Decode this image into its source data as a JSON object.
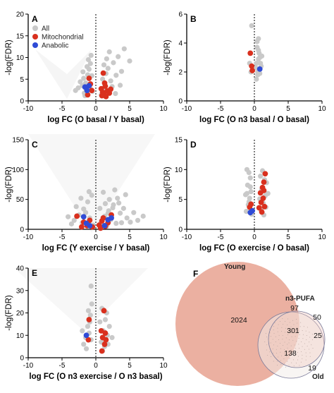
{
  "colors": {
    "all": "#c9c9c9",
    "mitochondrial": "#d9301e",
    "anabolic": "#2f4bd6",
    "young": "#ebb0a1",
    "old": "#f3ece9",
    "n3": "#f2c7bb"
  },
  "legend": [
    "All",
    "Mitochondrial",
    "Anabolic"
  ],
  "chart_data": [
    {
      "type": "scatter",
      "panel": "A",
      "xlabel": "log FC (O basal / Y basal)",
      "ylabel": "-log(FDR)",
      "xlim": [
        -10,
        10
      ],
      "ylim": [
        0,
        20
      ],
      "xticks": [
        -10,
        -5,
        0,
        5,
        10
      ],
      "yticks": [
        0,
        5,
        10,
        15,
        20
      ],
      "legend": true,
      "series": [
        {
          "name": "All",
          "points": [
            [
              -1.8,
              5.2
            ],
            [
              -1.5,
              4.1
            ],
            [
              -1.2,
              6.0
            ],
            [
              -1.0,
              7.3
            ],
            [
              -0.8,
              8.6
            ],
            [
              -1.4,
              2.6
            ],
            [
              -2.0,
              3.5
            ],
            [
              -1.7,
              1.8
            ],
            [
              -1.1,
              9.5
            ],
            [
              -0.6,
              5.8
            ],
            [
              -0.9,
              3.2
            ],
            [
              -2.3,
              4.4
            ],
            [
              -0.5,
              2.2
            ],
            [
              -1.3,
              7.9
            ],
            [
              -2.6,
              3.0
            ],
            [
              -1.9,
              6.7
            ],
            [
              -0.7,
              10.5
            ],
            [
              -1.6,
              1.2
            ],
            [
              -3.0,
              2.4
            ],
            [
              1.0,
              5.0
            ],
            [
              1.3,
              3.9
            ],
            [
              1.5,
              6.3
            ],
            [
              1.8,
              7.5
            ],
            [
              2.2,
              4.6
            ],
            [
              2.6,
              8.8
            ],
            [
              3.0,
              5.9
            ],
            [
              1.1,
              2.8
            ],
            [
              1.9,
              2.3
            ],
            [
              2.4,
              3.3
            ],
            [
              3.3,
              10.2
            ],
            [
              3.8,
              6.8
            ],
            [
              4.2,
              12.0
            ],
            [
              1.6,
              9.7
            ],
            [
              2.9,
              1.7
            ],
            [
              3.6,
              3.6
            ],
            [
              5.0,
              9.2
            ],
            [
              2.0,
              11.3
            ],
            [
              0.8,
              1.4
            ],
            [
              1.2,
              8.3
            ]
          ]
        },
        {
          "name": "Mitochondrial",
          "points": [
            [
              0.8,
              2.8
            ],
            [
              1.0,
              2.0
            ],
            [
              1.2,
              1.5
            ],
            [
              1.4,
              3.4
            ],
            [
              1.7,
              2.3
            ],
            [
              2.0,
              1.8
            ],
            [
              2.2,
              2.7
            ],
            [
              1.1,
              6.4
            ],
            [
              1.3,
              4.1
            ],
            [
              0.9,
              1.2
            ],
            [
              1.5,
              1.0
            ],
            [
              -1.0,
              5.2
            ],
            [
              -0.8,
              3.9
            ],
            [
              -0.6,
              2.4
            ],
            [
              -1.2,
              1.4
            ]
          ]
        },
        {
          "name": "Anabolic",
          "points": [
            [
              -1.6,
              3.2
            ],
            [
              -1.3,
              2.4
            ],
            [
              -1.0,
              3.5
            ]
          ]
        }
      ]
    },
    {
      "type": "scatter",
      "panel": "B",
      "xlabel": "log FC (O n3 basal / O basal)",
      "ylabel": "-log(FDR)",
      "xlim": [
        -10,
        10
      ],
      "ylim": [
        0,
        6
      ],
      "xticks": [
        -10,
        -5,
        0,
        5,
        10
      ],
      "yticks": [
        0,
        2,
        4,
        6
      ],
      "series": [
        {
          "name": "All",
          "points": [
            [
              0.4,
              4.1
            ],
            [
              0.6,
              3.5
            ],
            [
              0.8,
              3.0
            ],
            [
              0.3,
              2.6
            ],
            [
              0.7,
              2.2
            ],
            [
              0.5,
              1.8
            ],
            [
              0.9,
              2.6
            ],
            [
              1.1,
              3.1
            ],
            [
              0.6,
              2.9
            ],
            [
              0.4,
              3.7
            ],
            [
              0.8,
              1.9
            ],
            [
              1.0,
              2.4
            ],
            [
              0.3,
              1.5
            ],
            [
              0.7,
              3.3
            ],
            [
              0.5,
              2.0
            ],
            [
              -0.4,
              5.2
            ],
            [
              -0.7,
              2.6
            ],
            [
              -0.5,
              2.0
            ],
            [
              0.6,
              4.3
            ],
            [
              0.2,
              2.3
            ]
          ]
        },
        {
          "name": "Mitochondrial",
          "points": [
            [
              -0.6,
              3.3
            ],
            [
              -0.4,
              2.4
            ],
            [
              -0.3,
              2.1
            ]
          ]
        },
        {
          "name": "Anabolic",
          "points": [
            [
              0.8,
              2.2
            ]
          ]
        }
      ]
    },
    {
      "type": "scatter",
      "panel": "C",
      "xlabel": "log FC (Y exercise / Y basal)",
      "ylabel": "-log(FDR)",
      "xlim": [
        -10,
        10
      ],
      "ylim": [
        0,
        150
      ],
      "xticks": [
        -10,
        -5,
        0,
        5,
        10
      ],
      "yticks": [
        0,
        50,
        100,
        150
      ],
      "series": [
        {
          "name": "All",
          "points": [
            [
              -3.2,
              15
            ],
            [
              -2.5,
              24
            ],
            [
              -1.8,
              34
            ],
            [
              -1.2,
              46
            ],
            [
              -0.6,
              57
            ],
            [
              -2.0,
              11
            ],
            [
              -0.9,
              19
            ],
            [
              -1.5,
              28
            ],
            [
              -2.9,
              38
            ],
            [
              -4.1,
              21
            ],
            [
              -0.4,
              7
            ],
            [
              -1.0,
              63
            ],
            [
              -3.6,
              9
            ],
            [
              -2.2,
              52
            ],
            [
              0.8,
              12
            ],
            [
              1.3,
              22
            ],
            [
              1.9,
              31
            ],
            [
              2.6,
              41
            ],
            [
              3.2,
              52
            ],
            [
              1.1,
              62
            ],
            [
              2.2,
              16
            ],
            [
              3.6,
              27
            ],
            [
              4.1,
              35
            ],
            [
              1.6,
              5
            ],
            [
              4.6,
              19
            ],
            [
              3.0,
              10
            ],
            [
              5.1,
              12
            ],
            [
              2.8,
              66
            ],
            [
              1.4,
              43
            ],
            [
              5.6,
              28
            ],
            [
              6.2,
              15
            ],
            [
              0.6,
              35
            ],
            [
              2.0,
              50
            ],
            [
              3.4,
              44
            ],
            [
              4.4,
              58
            ],
            [
              7.0,
              22
            ],
            [
              1.8,
              27
            ],
            [
              0.9,
              8
            ],
            [
              2.5,
              36
            ],
            [
              3.8,
              11
            ]
          ]
        },
        {
          "name": "Mitochondrial",
          "points": [
            [
              -2.8,
              22
            ],
            [
              -1.8,
              12
            ],
            [
              -1.3,
              6
            ],
            [
              -0.9,
              15
            ],
            [
              -0.5,
              4
            ],
            [
              0.5,
              7
            ],
            [
              0.9,
              14
            ],
            [
              1.4,
              5
            ],
            [
              1.8,
              11
            ],
            [
              2.3,
              24
            ],
            [
              -2.1,
              4
            ],
            [
              0.7,
              2
            ],
            [
              1.1,
              19
            ]
          ]
        },
        {
          "name": "Anabolic",
          "points": [
            [
              -1.8,
              21
            ],
            [
              -1.4,
              10
            ],
            [
              -0.9,
              6
            ],
            [
              1.3,
              6
            ],
            [
              1.8,
              16
            ],
            [
              2.3,
              19
            ]
          ]
        }
      ]
    },
    {
      "type": "scatter",
      "panel": "D",
      "xlabel": "log FC (O exercise / O basal)",
      "ylabel": "-log(FDR)",
      "xlim": [
        -10,
        10
      ],
      "ylim": [
        0,
        15
      ],
      "xticks": [
        -10,
        -5,
        0,
        5,
        10
      ],
      "yticks": [
        0,
        5,
        10,
        15
      ],
      "series": [
        {
          "name": "All",
          "points": [
            [
              -1.2,
              3.0
            ],
            [
              -0.9,
              4.1
            ],
            [
              -0.7,
              5.2
            ],
            [
              -0.5,
              6.3
            ],
            [
              -1.0,
              7.4
            ],
            [
              -0.6,
              8.6
            ],
            [
              -0.8,
              9.5
            ],
            [
              -1.3,
              5.8
            ],
            [
              -0.4,
              2.5
            ],
            [
              -1.1,
              10.0
            ],
            [
              1.0,
              3.2
            ],
            [
              1.3,
              4.4
            ],
            [
              1.6,
              5.6
            ],
            [
              1.1,
              6.7
            ],
            [
              1.8,
              7.8
            ],
            [
              0.9,
              8.9
            ],
            [
              1.4,
              2.4
            ],
            [
              2.0,
              6.0
            ],
            [
              1.2,
              9.8
            ],
            [
              0.8,
              5.1
            ],
            [
              -0.8,
              4.6
            ],
            [
              -0.6,
              7.1
            ],
            [
              1.5,
              8.3
            ],
            [
              1.7,
              3.7
            ],
            [
              -1.1,
              6.0
            ]
          ]
        },
        {
          "name": "Mitochondrial",
          "points": [
            [
              1.6,
              9.3
            ],
            [
              1.4,
              7.9
            ],
            [
              1.2,
              7.0
            ],
            [
              0.9,
              6.1
            ],
            [
              1.3,
              5.2
            ],
            [
              1.0,
              4.5
            ],
            [
              0.7,
              3.6
            ],
            [
              1.1,
              2.9
            ],
            [
              1.5,
              3.8
            ],
            [
              1.4,
              6.5
            ],
            [
              -0.7,
              3.7
            ],
            [
              -0.5,
              4.2
            ]
          ]
        },
        {
          "name": "Anabolic",
          "points": [
            [
              -0.6,
              2.8
            ],
            [
              -0.3,
              3.1
            ]
          ]
        }
      ]
    },
    {
      "type": "scatter",
      "panel": "E",
      "xlabel": "log FC (O n3 exercise / O n3 basal)",
      "ylabel": "-log(FDR)",
      "xlim": [
        -10,
        10
      ],
      "ylim": [
        0,
        40
      ],
      "xticks": [
        -10,
        -5,
        0,
        5,
        10
      ],
      "yticks": [
        0,
        10,
        20,
        30,
        40
      ],
      "series": [
        {
          "name": "All",
          "points": [
            [
              -1.5,
              9
            ],
            [
              -1.2,
              14
            ],
            [
              -0.8,
              19
            ],
            [
              -1.8,
              6
            ],
            [
              -0.6,
              24
            ],
            [
              -1.0,
              11
            ],
            [
              -1.4,
              4
            ],
            [
              -0.9,
              16
            ],
            [
              -2.0,
              12
            ],
            [
              -0.7,
              8
            ],
            [
              0.8,
              7
            ],
            [
              1.1,
              12
            ],
            [
              1.4,
              17
            ],
            [
              1.7,
              10
            ],
            [
              0.9,
              22
            ],
            [
              1.3,
              5
            ],
            [
              2.0,
              14
            ],
            [
              1.6,
              20
            ],
            [
              1.0,
              3
            ],
            [
              -0.7,
              32
            ],
            [
              -1.1,
              21
            ],
            [
              1.8,
              6
            ],
            [
              0.6,
              16
            ],
            [
              2.4,
              9
            ]
          ]
        },
        {
          "name": "Mitochondrial",
          "points": [
            [
              1.2,
              21
            ],
            [
              -1.0,
              17
            ],
            [
              0.8,
              12
            ],
            [
              1.0,
              9
            ],
            [
              1.3,
              6
            ],
            [
              0.9,
              3
            ],
            [
              1.5,
              8
            ],
            [
              -1.1,
              8
            ],
            [
              1.4,
              11
            ]
          ]
        },
        {
          "name": "Anabolic",
          "points": [
            [
              -1.4,
              10
            ]
          ]
        }
      ]
    },
    {
      "type": "venn",
      "panel": "F",
      "sets": [
        "Young",
        "n3-PUFA",
        "Old"
      ],
      "regions": {
        "young_only": 2024,
        "young_n3": 97,
        "n3_only": 50,
        "all_three": 301,
        "n3_old": 25,
        "young_old": 138,
        "old_only": 19
      }
    }
  ]
}
